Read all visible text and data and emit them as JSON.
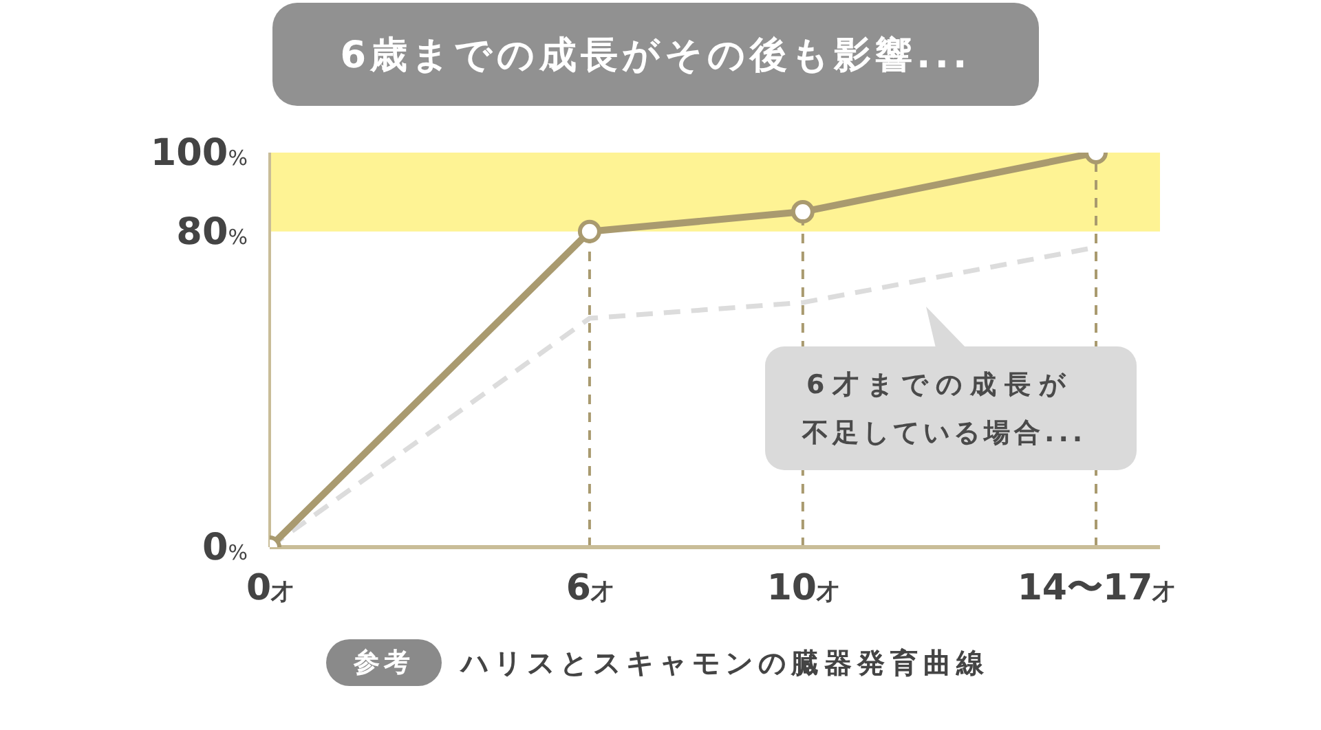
{
  "chart_data": {
    "type": "line",
    "title": "6歳までの成長がその後も影響...",
    "x": [
      0,
      6,
      10,
      15.5
    ],
    "series": [
      {
        "color": "#a99a6f",
        "values": [
          0,
          80,
          85,
          100
        ]
      },
      {
        "color": "#dcdcdc",
        "values": [
          0,
          58,
          62,
          76
        ],
        "line_style": "dashed",
        "marker": "none"
      }
    ],
    "xlim": [
      0,
      16.7
    ],
    "xticks": [
      {
        "value": 0,
        "label": "0才"
      },
      {
        "value": 6,
        "label": "6才"
      },
      {
        "value": 10,
        "label": "10才"
      },
      {
        "value": 15.5,
        "label": "14〜17才"
      }
    ],
    "ylim": [
      0,
      100
    ],
    "yticks": [
      {
        "value": 0,
        "label": "0%"
      },
      {
        "value": 80,
        "label": "80%"
      },
      {
        "value": 100,
        "label": "100%"
      }
    ],
    "marker": "circle",
    "line_style": "solid",
    "bands": [
      {
        "axis": "y",
        "from": 80,
        "to": 100,
        "color": "#fef394"
      }
    ],
    "ref_lines": [
      {
        "axis": "x",
        "value": 6,
        "color": "#a99a6f",
        "line_style": "dashed"
      },
      {
        "axis": "x",
        "value": 10,
        "color": "#a99a6f",
        "line_style": "dashed"
      },
      {
        "axis": "x",
        "value": 15.5,
        "color": "#a99a6f",
        "line_style": "dashed"
      }
    ],
    "annotations": [
      "6才までの成長が不足している場合...",
      "参考",
      "ハリスとスキャモンの臓器発育曲線"
    ]
  }
}
